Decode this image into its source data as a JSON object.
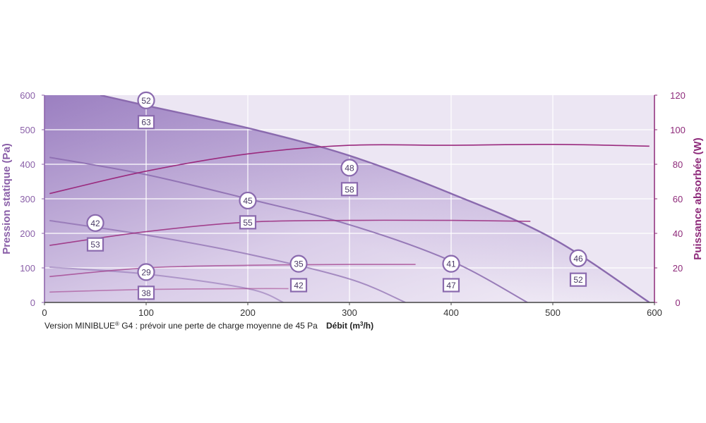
{
  "chart_data": {
    "type": "line",
    "xlabel_main": "Débit (m",
    "xlabel_sup": "3",
    "xlabel_end": "/h)",
    "ylabel_left": "Pression statique (Pa)",
    "ylabel_right": "Puissance absorbée (W)",
    "note_main": "Version MINIBLUE",
    "note_sup": "®",
    "note_rest": " G4 : prévoir une perte de charge moyenne de 45 Pa",
    "xlim": [
      0,
      600
    ],
    "ylim_left": [
      0,
      600
    ],
    "ylim_right": [
      0,
      120
    ],
    "x_ticks": [
      "0",
      "100",
      "200",
      "300",
      "400",
      "500",
      "600"
    ],
    "y_left_ticks": [
      "0",
      "100",
      "200",
      "300",
      "400",
      "500",
      "600"
    ],
    "y_right_ticks": [
      "0",
      "20",
      "40",
      "60",
      "80",
      "100",
      "120"
    ],
    "colors": {
      "axis_left": "#8a5fa8",
      "axis_right": "#8e2a7a",
      "pressure_curve": "#8a6aae",
      "power_curve": "#9a2a7e",
      "fill_dark": "#9a7ec0",
      "fill_light": "#ece6f3",
      "grid": "#ffffff"
    },
    "pressure_series": [
      {
        "points": [
          [
            55,
            600
          ],
          [
            100,
            570
          ],
          [
            200,
            505
          ],
          [
            300,
            425
          ],
          [
            400,
            315
          ],
          [
            500,
            185
          ],
          [
            595,
            0
          ]
        ]
      },
      {
        "points": [
          [
            5,
            420
          ],
          [
            100,
            370
          ],
          [
            200,
            300
          ],
          [
            300,
            225
          ],
          [
            400,
            120
          ],
          [
            475,
            0
          ]
        ]
      },
      {
        "points": [
          [
            5,
            237
          ],
          [
            100,
            195
          ],
          [
            200,
            140
          ],
          [
            300,
            68
          ],
          [
            355,
            0
          ]
        ]
      },
      {
        "points": [
          [
            5,
            102
          ],
          [
            100,
            82
          ],
          [
            200,
            40
          ],
          [
            235,
            0
          ]
        ]
      }
    ],
    "power_series": [
      {
        "points": [
          [
            5,
            63
          ],
          [
            100,
            76
          ],
          [
            200,
            86
          ],
          [
            300,
            91
          ],
          [
            400,
            91
          ],
          [
            500,
            91.5
          ],
          [
            595,
            90.5
          ]
        ]
      },
      {
        "points": [
          [
            5,
            33
          ],
          [
            100,
            41
          ],
          [
            200,
            46.5
          ],
          [
            300,
            47.5
          ],
          [
            400,
            47.5
          ],
          [
            478,
            47
          ]
        ]
      },
      {
        "points": [
          [
            5,
            15
          ],
          [
            100,
            20
          ],
          [
            200,
            21.5
          ],
          [
            300,
            22
          ],
          [
            365,
            22
          ]
        ]
      },
      {
        "points": [
          [
            5,
            6
          ],
          [
            100,
            7.5
          ],
          [
            200,
            8
          ],
          [
            240,
            8
          ]
        ]
      }
    ],
    "badges": [
      {
        "shape": "circle",
        "x": 100,
        "y": 585,
        "label": "52"
      },
      {
        "shape": "square",
        "x": 100,
        "y": 522,
        "label": "63"
      },
      {
        "shape": "circle",
        "x": 300,
        "y": 390,
        "label": "48"
      },
      {
        "shape": "square",
        "x": 300,
        "y": 328,
        "label": "58"
      },
      {
        "shape": "circle",
        "x": 200,
        "y": 295,
        "label": "45"
      },
      {
        "shape": "square",
        "x": 200,
        "y": 232,
        "label": "55"
      },
      {
        "shape": "circle",
        "x": 50,
        "y": 230,
        "label": "42"
      },
      {
        "shape": "square",
        "x": 50,
        "y": 168,
        "label": "53"
      },
      {
        "shape": "circle",
        "x": 100,
        "y": 88,
        "label": "29"
      },
      {
        "shape": "square",
        "x": 100,
        "y": 28,
        "label": "38"
      },
      {
        "shape": "circle",
        "x": 250,
        "y": 112,
        "label": "35"
      },
      {
        "shape": "square",
        "x": 250,
        "y": 50,
        "label": "42"
      },
      {
        "shape": "circle",
        "x": 400,
        "y": 112,
        "label": "41"
      },
      {
        "shape": "square",
        "x": 400,
        "y": 50,
        "label": "47"
      },
      {
        "shape": "circle",
        "x": 525,
        "y": 128,
        "label": "46"
      },
      {
        "shape": "square",
        "x": 525,
        "y": 66,
        "label": "52"
      }
    ]
  }
}
